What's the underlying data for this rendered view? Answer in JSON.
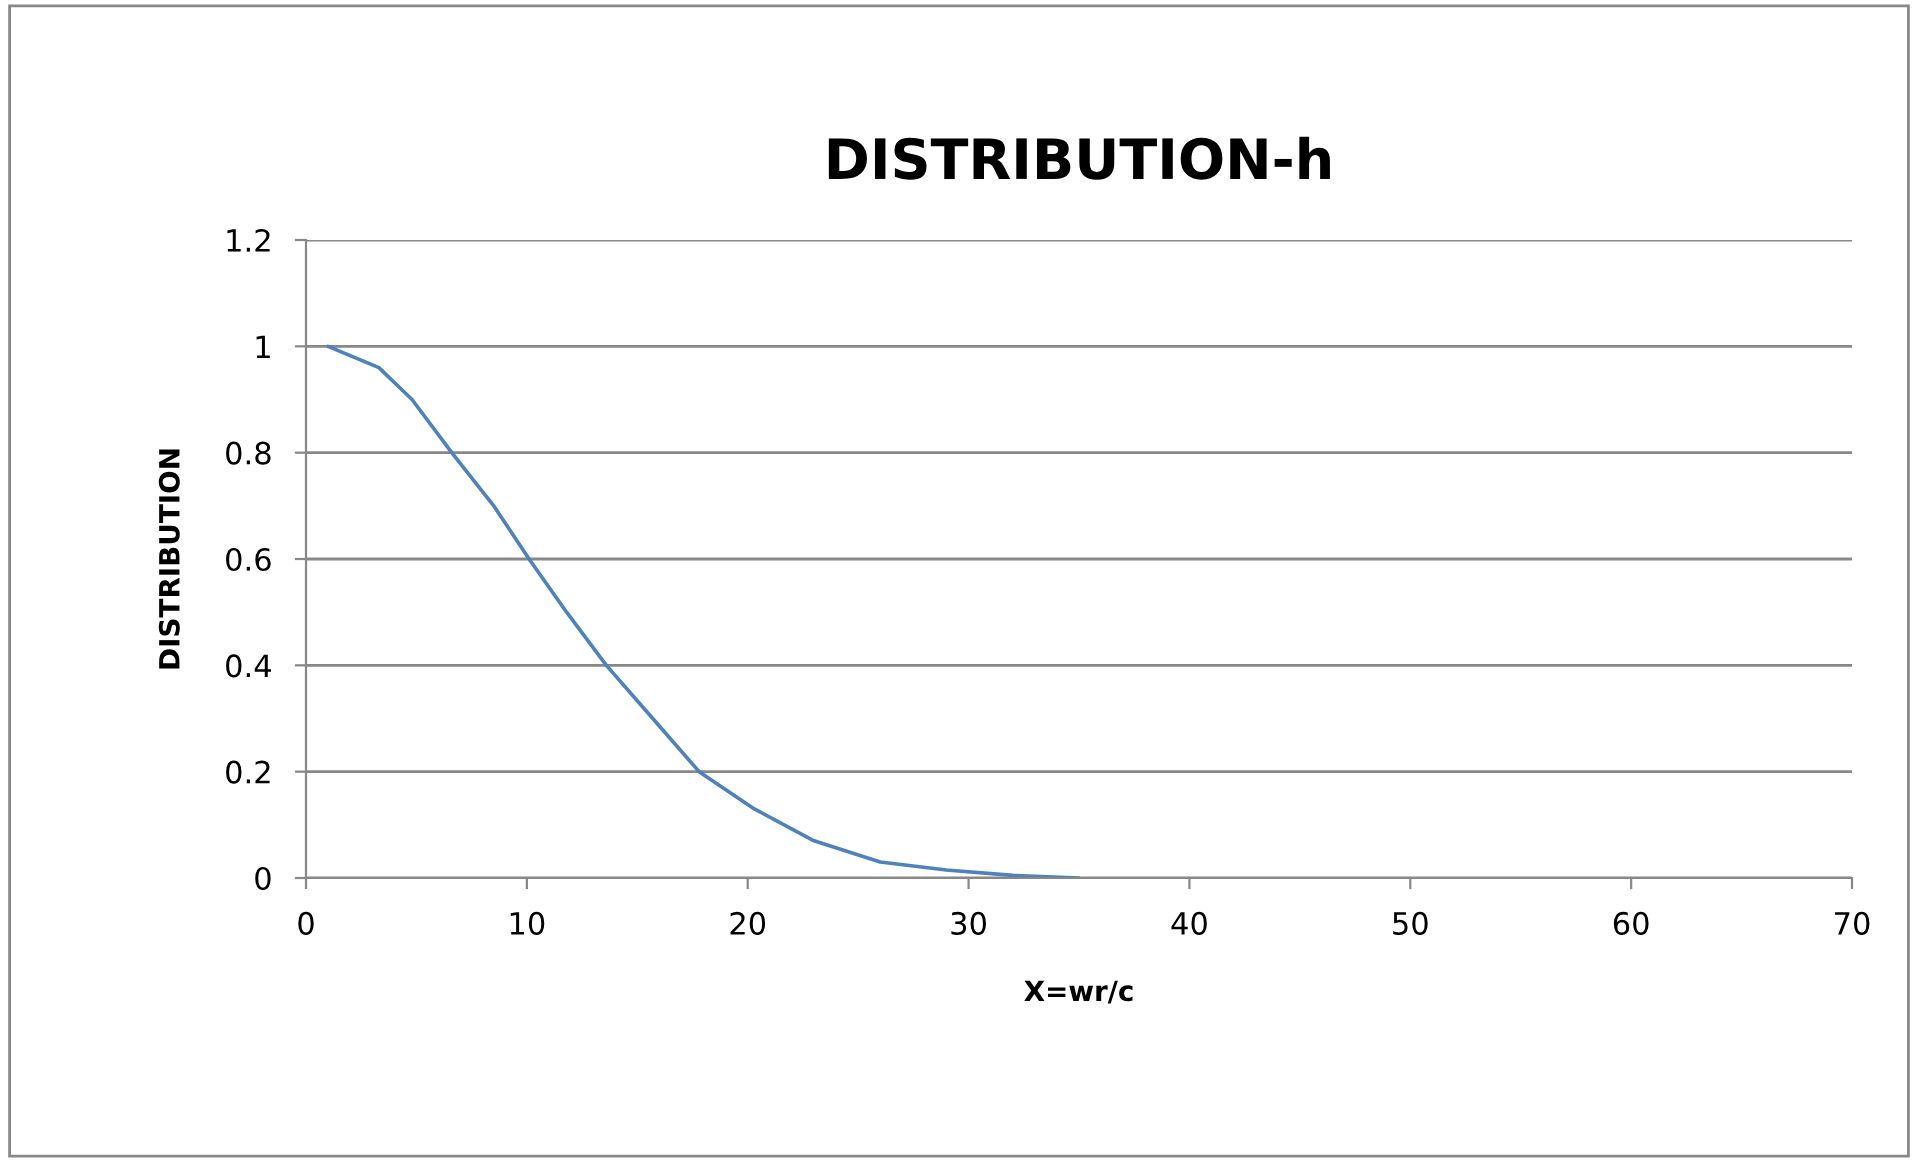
{
  "chart_data": {
    "type": "line",
    "title": "DISTRIBUTION-h",
    "xlabel": "X=wr/c",
    "ylabel": "DISTRIBUTION",
    "series": [
      {
        "color": "#4f81bd",
        "x": [
          1,
          3.3,
          4.8,
          6.6,
          8.5,
          10.1,
          11.8,
          13.6,
          15.7,
          17.8,
          20.3,
          23,
          26,
          29,
          32,
          35
        ],
        "values": [
          1,
          0.96,
          0.9,
          0.8,
          0.7,
          0.6,
          0.5,
          0.4,
          0.3,
          0.2,
          0.13,
          0.07,
          0.03,
          0.015,
          0.005,
          0
        ]
      }
    ],
    "xlim": [
      0,
      70
    ],
    "xticks": [
      0,
      10,
      20,
      30,
      40,
      50,
      60,
      70
    ],
    "ylim": [
      0,
      1.2
    ],
    "yticks": [
      0,
      0.2,
      0.4,
      0.6,
      0.8,
      1,
      1.2
    ],
    "grid": "y",
    "marker": "none",
    "line_style": "solid"
  }
}
